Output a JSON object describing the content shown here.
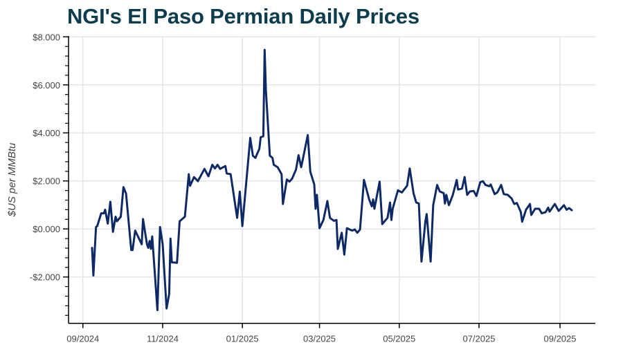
{
  "chart_data": {
    "type": "line",
    "title": "NGI's El Paso Permian Daily Prices",
    "xlabel": "",
    "ylabel": "$US per MMBtu",
    "xlim": [
      "2024-08-21",
      "2025-09-28"
    ],
    "ylim": [
      -3.93,
      8.0
    ],
    "grid": true,
    "line_color": "#0d2a66",
    "title_color": "#0b3d4f",
    "y_ticks": [
      {
        "value": 8,
        "label": "$8.000"
      },
      {
        "value": 6,
        "label": "$6.000"
      },
      {
        "value": 4,
        "label": "$4.000"
      },
      {
        "value": 2,
        "label": "$2.000"
      },
      {
        "value": 0,
        "label": "$0.000"
      },
      {
        "value": -2,
        "label": "-$2.000"
      }
    ],
    "x_ticks": [
      {
        "date": "2024-09-01",
        "label": "09/2024"
      },
      {
        "date": "2024-11-01",
        "label": "11/2024"
      },
      {
        "date": "2025-01-01",
        "label": "01/2025"
      },
      {
        "date": "2025-03-01",
        "label": "03/2025"
      },
      {
        "date": "2025-05-01",
        "label": "05/2025"
      },
      {
        "date": "2025-07-01",
        "label": "07/2025"
      },
      {
        "date": "2025-09-01",
        "label": "09/2025"
      }
    ],
    "series": [
      {
        "points": [
          [
            "2024-09-08",
            -0.79
          ],
          [
            "2024-09-09",
            -1.94
          ],
          [
            "2024-09-11",
            0.08
          ],
          [
            "2024-09-12",
            0.12
          ],
          [
            "2024-09-15",
            0.65
          ],
          [
            "2024-09-17",
            0.65
          ],
          [
            "2024-09-18",
            0.8
          ],
          [
            "2024-09-20",
            0.22
          ],
          [
            "2024-09-22",
            1.13
          ],
          [
            "2024-09-24",
            -0.12
          ],
          [
            "2024-09-26",
            0.51
          ],
          [
            "2024-09-27",
            0.32
          ],
          [
            "2024-09-30",
            0.51
          ],
          [
            "2024-10-02",
            1.74
          ],
          [
            "2024-10-04",
            1.47
          ],
          [
            "2024-10-08",
            -0.88
          ],
          [
            "2024-10-09",
            -0.88
          ],
          [
            "2024-10-11",
            -0.07
          ],
          [
            "2024-10-16",
            -0.64
          ],
          [
            "2024-10-17",
            0.41
          ],
          [
            "2024-10-20",
            -0.64
          ],
          [
            "2024-10-21",
            -0.79
          ],
          [
            "2024-10-22",
            -0.5
          ],
          [
            "2024-10-23",
            -0.83
          ],
          [
            "2024-10-24",
            -0.31
          ],
          [
            "2024-10-28",
            -3.38
          ],
          [
            "2024-10-30",
            0.08
          ],
          [
            "2024-11-01",
            -0.64
          ],
          [
            "2024-11-04",
            -3.31
          ],
          [
            "2024-11-06",
            -2.71
          ],
          [
            "2024-11-07",
            -0.4
          ],
          [
            "2024-11-08",
            -1.39
          ],
          [
            "2024-11-12",
            -1.41
          ],
          [
            "2024-11-14",
            0.32
          ],
          [
            "2024-11-18",
            0.51
          ],
          [
            "2024-11-21",
            2.28
          ],
          [
            "2024-11-22",
            1.8
          ],
          [
            "2024-11-25",
            2.16
          ],
          [
            "2024-11-28",
            1.99
          ],
          [
            "2024-12-03",
            2.5
          ],
          [
            "2024-12-06",
            2.19
          ],
          [
            "2024-12-09",
            2.67
          ],
          [
            "2024-12-11",
            2.52
          ],
          [
            "2024-12-13",
            2.67
          ],
          [
            "2024-12-15",
            2.5
          ],
          [
            "2024-12-19",
            2.62
          ],
          [
            "2024-12-20",
            2.31
          ],
          [
            "2024-12-23",
            2.28
          ],
          [
            "2024-12-28",
            0.46
          ],
          [
            "2024-12-30",
            1.55
          ],
          [
            "2025-01-01",
            0.12
          ],
          [
            "2025-01-07",
            3.79
          ],
          [
            "2025-01-09",
            3.05
          ],
          [
            "2025-01-11",
            2.96
          ],
          [
            "2025-01-14",
            3.34
          ],
          [
            "2025-01-15",
            3.82
          ],
          [
            "2025-01-17",
            3.86
          ],
          [
            "2025-01-18",
            7.46
          ],
          [
            "2025-01-19",
            5.78
          ],
          [
            "2025-01-22",
            3.05
          ],
          [
            "2025-01-24",
            2.96
          ],
          [
            "2025-01-25",
            2.67
          ],
          [
            "2025-01-28",
            2.57
          ],
          [
            "2025-01-31",
            2.28
          ],
          [
            "2025-02-01",
            1.04
          ],
          [
            "2025-02-04",
            2.06
          ],
          [
            "2025-02-06",
            1.97
          ],
          [
            "2025-02-08",
            2.09
          ],
          [
            "2025-02-11",
            2.47
          ],
          [
            "2025-02-13",
            3.07
          ],
          [
            "2025-02-15",
            2.57
          ],
          [
            "2025-02-20",
            3.91
          ],
          [
            "2025-02-22",
            2.38
          ],
          [
            "2025-02-25",
            1.85
          ],
          [
            "2025-02-26",
            0.84
          ],
          [
            "2025-02-27",
            1.42
          ],
          [
            "2025-03-01",
            0.03
          ],
          [
            "2025-03-04",
            0.37
          ],
          [
            "2025-03-07",
            1.16
          ],
          [
            "2025-03-09",
            0.46
          ],
          [
            "2025-03-12",
            0.34
          ],
          [
            "2025-03-14",
            0.37
          ],
          [
            "2025-03-15",
            -0.83
          ],
          [
            "2025-03-18",
            -0.16
          ],
          [
            "2025-03-20",
            -1.07
          ],
          [
            "2025-03-22",
            0.03
          ],
          [
            "2025-03-26",
            -0.07
          ],
          [
            "2025-03-28",
            -0.02
          ],
          [
            "2025-03-30",
            -0.16
          ],
          [
            "2025-04-01",
            -0.02
          ],
          [
            "2025-04-04",
            2.04
          ],
          [
            "2025-04-08",
            1.23
          ],
          [
            "2025-04-10",
            0.94
          ],
          [
            "2025-04-11",
            1.23
          ],
          [
            "2025-04-12",
            0.84
          ],
          [
            "2025-04-16",
            1.97
          ],
          [
            "2025-04-18",
            0.2
          ],
          [
            "2025-04-22",
            0.46
          ],
          [
            "2025-04-24",
            1.1
          ],
          [
            "2025-04-25",
            0.37
          ],
          [
            "2025-04-26",
            0.84
          ],
          [
            "2025-04-30",
            1.61
          ],
          [
            "2025-05-03",
            1.52
          ],
          [
            "2025-05-07",
            1.8
          ],
          [
            "2025-05-09",
            2.52
          ],
          [
            "2025-05-12",
            1.47
          ],
          [
            "2025-05-14",
            1.1
          ],
          [
            "2025-05-16",
            1.06
          ],
          [
            "2025-05-18",
            -1.36
          ],
          [
            "2025-05-21",
            0.32
          ],
          [
            "2025-05-22",
            0.62
          ],
          [
            "2025-05-25",
            -1.36
          ],
          [
            "2025-05-27",
            0.99
          ],
          [
            "2025-05-30",
            1.83
          ],
          [
            "2025-06-01",
            1.56
          ],
          [
            "2025-06-04",
            1.49
          ],
          [
            "2025-06-05",
            1.06
          ],
          [
            "2025-06-06",
            1.42
          ],
          [
            "2025-06-08",
            0.99
          ],
          [
            "2025-06-11",
            1.42
          ],
          [
            "2025-06-14",
            2.04
          ],
          [
            "2025-06-15",
            1.64
          ],
          [
            "2025-06-18",
            1.68
          ],
          [
            "2025-06-20",
            2.16
          ],
          [
            "2025-06-22",
            1.42
          ],
          [
            "2025-06-24",
            1.56
          ],
          [
            "2025-06-27",
            1.58
          ],
          [
            "2025-06-29",
            1.37
          ],
          [
            "2025-07-02",
            1.95
          ],
          [
            "2025-07-04",
            1.99
          ],
          [
            "2025-07-06",
            1.83
          ],
          [
            "2025-07-09",
            1.78
          ],
          [
            "2025-07-10",
            1.85
          ],
          [
            "2025-07-13",
            1.45
          ],
          [
            "2025-07-15",
            1.52
          ],
          [
            "2025-07-18",
            1.83
          ],
          [
            "2025-07-20",
            1.45
          ],
          [
            "2025-07-23",
            1.42
          ],
          [
            "2025-07-26",
            1.27
          ],
          [
            "2025-07-28",
            1.04
          ],
          [
            "2025-07-30",
            1.08
          ],
          [
            "2025-08-02",
            0.7
          ],
          [
            "2025-08-03",
            0.3
          ],
          [
            "2025-08-06",
            0.8
          ],
          [
            "2025-08-09",
            1.04
          ],
          [
            "2025-08-10",
            0.58
          ],
          [
            "2025-08-13",
            0.84
          ],
          [
            "2025-08-16",
            0.84
          ],
          [
            "2025-08-18",
            0.65
          ],
          [
            "2025-08-21",
            0.7
          ],
          [
            "2025-08-23",
            0.89
          ],
          [
            "2025-08-24",
            0.72
          ],
          [
            "2025-08-28",
            1.04
          ],
          [
            "2025-08-31",
            0.75
          ],
          [
            "2025-09-04",
            0.99
          ],
          [
            "2025-09-06",
            0.8
          ],
          [
            "2025-09-08",
            0.87
          ],
          [
            "2025-09-10",
            0.78
          ]
        ]
      }
    ]
  }
}
